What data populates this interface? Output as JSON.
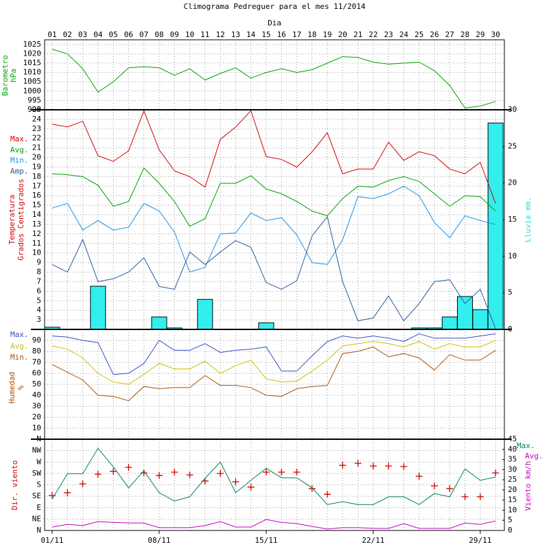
{
  "header": {
    "title": "Climograma Pedreguer para el mes 11/2014",
    "xlabel": "Dia",
    "categories": [
      "01",
      "02",
      "03",
      "04",
      "05",
      "06",
      "07",
      "08",
      "09",
      "10",
      "11",
      "12",
      "13",
      "14",
      "15",
      "16",
      "17",
      "18",
      "19",
      "20",
      "21",
      "22",
      "23",
      "24",
      "25",
      "26",
      "27",
      "28",
      "29",
      "30"
    ]
  },
  "footer": {
    "xticks": [
      {
        "value": 1,
        "label": "01/11"
      },
      {
        "value": 8,
        "label": "08/11"
      },
      {
        "value": 15,
        "label": "15/11"
      },
      {
        "value": 22,
        "label": "22/11"
      },
      {
        "value": 29,
        "label": "29/11"
      }
    ]
  },
  "chart_data": [
    {
      "type": "line",
      "ylabel": [
        "Barometro",
        "hPa"
      ],
      "ylim": [
        990,
        1027.5
      ],
      "yticks": [
        990,
        995,
        1000,
        1005,
        1010,
        1015,
        1020,
        1025
      ],
      "grid": true,
      "series": [
        {
          "color": "#00a000",
          "values": [
            1022.4,
            1020,
            1012,
            999.5,
            1005,
            1012.5,
            1013,
            1012.5,
            1008.5,
            1012,
            1006,
            1009.5,
            1012.5,
            1007,
            1010,
            1012,
            1010,
            1011.5,
            1015,
            1018.5,
            1018,
            1015.5,
            1014.5,
            1015,
            1015.5,
            1011,
            1003,
            991,
            992,
            994.5
          ]
        }
      ]
    },
    {
      "type": "line",
      "ylabel": [
        "Temperatura",
        "Grados Centigrados"
      ],
      "y2label": "Lluvia mm.",
      "ylim": [
        2,
        25
      ],
      "yticks": [
        3,
        4,
        5,
        6,
        7,
        8,
        9,
        10,
        11,
        12,
        13,
        14,
        15,
        16,
        17,
        18,
        19,
        20,
        21,
        22,
        23,
        24,
        25
      ],
      "y2lim": [
        0,
        30
      ],
      "y2ticks": [
        0,
        5,
        10,
        15,
        20,
        25,
        30
      ],
      "grid": true,
      "series": [
        {
          "type": "bar",
          "axis": "y2",
          "color": "#33eeee",
          "values": [
            0.3,
            0,
            0,
            5.9,
            0,
            0,
            0,
            1.7,
            0.2,
            0,
            4.1,
            0,
            0,
            0,
            0.9,
            0,
            0,
            0,
            0,
            0,
            0,
            0,
            0,
            0,
            0.2,
            0.2,
            1.7,
            4.5,
            2.7,
            28.2
          ]
        },
        {
          "name": "Max.",
          "color": "#d00000",
          "values": [
            23.5,
            23.2,
            23.8,
            20.2,
            19.6,
            20.7,
            24.9,
            20.8,
            18.6,
            18.0,
            16.9,
            21.9,
            23.2,
            24.9,
            20.1,
            19.8,
            19.0,
            20.6,
            22.6,
            18.3,
            18.8,
            18.8,
            21.6,
            19.7,
            20.6,
            20.2,
            18.8,
            18.3,
            19.5,
            15.2
          ]
        },
        {
          "name": "Avg.",
          "color": "#00a000",
          "values": [
            18.3,
            18.2,
            18.0,
            17.1,
            14.9,
            15.4,
            18.9,
            17.3,
            15.4,
            12.8,
            13.6,
            17.3,
            17.3,
            18.1,
            16.7,
            16.2,
            15.4,
            14.4,
            13.9,
            15.7,
            17.0,
            16.9,
            17.6,
            18.0,
            17.5,
            16.2,
            14.9,
            16.0,
            15.9,
            14.4
          ]
        },
        {
          "name": "Min.",
          "color": "#1e8fe0",
          "values": [
            14.7,
            15.2,
            12.4,
            13.4,
            12.4,
            12.7,
            15.2,
            14.4,
            12.2,
            8.0,
            8.5,
            12.0,
            12.1,
            14.2,
            13.4,
            13.7,
            11.9,
            9.0,
            8.8,
            11.4,
            15.9,
            15.7,
            16.2,
            17.0,
            16.0,
            13.2,
            11.6,
            13.9,
            13.4,
            13.0
          ]
        },
        {
          "name": "Amp.",
          "color": "#2a5a98",
          "values": [
            8.8,
            8.0,
            11.4,
            7.0,
            7.3,
            8.0,
            9.5,
            6.5,
            6.2,
            10.1,
            8.8,
            10.1,
            11.3,
            10.6,
            6.9,
            6.2,
            7.1,
            11.8,
            13.8,
            7.0,
            2.9,
            3.2,
            5.5,
            2.9,
            4.7,
            7.0,
            7.2,
            4.7,
            6.2,
            2.1
          ]
        }
      ]
    },
    {
      "type": "line",
      "ylabel": [
        "Humedad",
        "%"
      ],
      "ylim": [
        0,
        100
      ],
      "yticks": [
        10,
        20,
        30,
        40,
        50,
        60,
        70,
        80,
        90
      ],
      "grid": true,
      "series": [
        {
          "name": "Max.",
          "color": "#3050c0",
          "values": [
            94,
            93,
            90,
            88,
            59,
            60,
            69,
            90,
            81,
            81,
            87,
            79,
            81,
            82,
            84,
            62,
            62,
            76,
            89,
            94,
            92,
            94,
            92,
            89,
            96,
            92,
            92,
            92,
            94,
            96
          ]
        },
        {
          "name": "Avg.",
          "color": "#c8c000",
          "values": [
            85,
            82,
            74,
            60,
            52,
            50,
            59,
            69,
            64,
            64,
            71,
            60,
            67,
            72,
            55,
            52,
            53,
            62,
            72,
            85,
            87,
            89,
            87,
            84,
            89,
            82,
            87,
            84,
            84,
            90
          ]
        },
        {
          "name": "Min.",
          "color": "#b05000",
          "values": [
            68,
            61,
            54,
            40,
            39,
            35,
            48,
            46,
            47,
            47,
            58,
            49,
            49,
            47,
            40,
            39,
            46,
            48,
            49,
            78,
            80,
            84,
            75,
            78,
            74,
            63,
            77,
            72,
            72,
            81
          ]
        }
      ]
    },
    {
      "type": "line",
      "ylabel": [
        "Dir. viento"
      ],
      "y2label": "Viento km/h",
      "ylim": [
        0,
        360
      ],
      "yticks": [
        {
          "value": 0,
          "label": "N"
        },
        {
          "value": 45,
          "label": "NE"
        },
        {
          "value": 90,
          "label": "E"
        },
        {
          "value": 135,
          "label": "SE"
        },
        {
          "value": 180,
          "label": "S"
        },
        {
          "value": 225,
          "label": "SW"
        },
        {
          "value": 270,
          "label": "W"
        },
        {
          "value": 315,
          "label": "NW"
        },
        {
          "value": 360,
          "label": "N"
        }
      ],
      "y2lim": [
        0,
        45
      ],
      "y2ticks": [
        0,
        5,
        10,
        15,
        20,
        25,
        30,
        35,
        40,
        45
      ],
      "grid": true,
      "series": [
        {
          "type": "scatter",
          "color": "#d00000",
          "values": [
            138,
            149,
            184,
            222,
            233,
            249,
            227,
            217,
            230,
            219,
            195,
            225,
            192,
            171,
            230,
            230,
            230,
            165,
            143,
            257,
            265,
            254,
            254,
            252,
            214,
            176,
            165,
            133,
            133,
            227
          ]
        },
        {
          "name": "Max.",
          "axis": "y2",
          "color": "#008060",
          "values": [
            15.5,
            28,
            28,
            40.5,
            31.4,
            21,
            29.4,
            18.6,
            14.5,
            16.6,
            25.7,
            33.8,
            18.6,
            24.7,
            30.7,
            26,
            26,
            21,
            12.8,
            14.2,
            12.8,
            12.8,
            16.6,
            16.6,
            12.8,
            18.2,
            16.6,
            30.4,
            24.7,
            26.4
          ]
        },
        {
          "name": "Avg.",
          "axis": "y2",
          "color": "#c000c0",
          "values": [
            1.7,
            3,
            2.4,
            4.4,
            4,
            3.7,
            3.7,
            1.4,
            1.4,
            1.4,
            2.4,
            4.4,
            1.7,
            1.7,
            5.4,
            4,
            3.4,
            2,
            0.7,
            1.4,
            1.4,
            1,
            1,
            3.4,
            1,
            1,
            1,
            3.7,
            3,
            4.7
          ]
        }
      ]
    }
  ]
}
